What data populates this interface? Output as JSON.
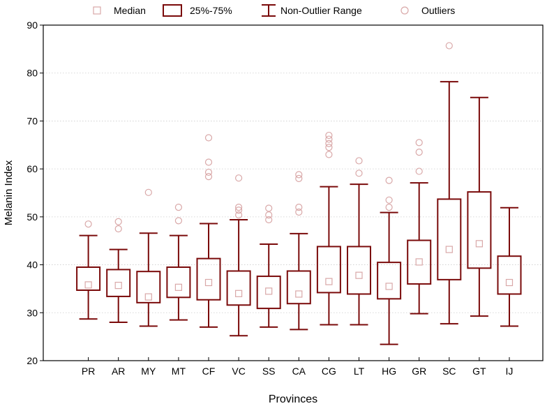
{
  "colors": {
    "box": "#7a0a0a",
    "outlier": "#d9a8a8",
    "grid": "#cccccc",
    "axis": "#000000"
  },
  "chart_data": {
    "type": "boxplot",
    "title": "",
    "xlabel": "Provinces",
    "ylabel": "Melanin Index",
    "ylim": [
      20,
      90
    ],
    "yticks": [
      20,
      30,
      40,
      50,
      60,
      70,
      80,
      90
    ],
    "grid": "horizontal-dotted",
    "legend_position": "top",
    "legend": [
      {
        "key": "median",
        "label": "Median"
      },
      {
        "key": "box",
        "label": "25%-75%"
      },
      {
        "key": "whisker",
        "label": "Non-Outlier Range"
      },
      {
        "key": "outlier",
        "label": "Outliers"
      }
    ],
    "categories": [
      "PR",
      "AR",
      "MY",
      "MT",
      "CF",
      "VC",
      "SS",
      "CA",
      "CG",
      "LT",
      "HG",
      "GR",
      "SC",
      "GT",
      "IJ"
    ],
    "series": [
      {
        "category": "PR",
        "min": 28.7,
        "q1": 34.7,
        "median": 35.8,
        "q3": 39.5,
        "max": 46.1,
        "outliers": [
          48.5
        ]
      },
      {
        "category": "AR",
        "min": 28.0,
        "q1": 33.4,
        "median": 35.7,
        "q3": 39.0,
        "max": 43.2,
        "outliers": [
          47.5,
          49.0
        ]
      },
      {
        "category": "MY",
        "min": 27.2,
        "q1": 32.1,
        "median": 33.3,
        "q3": 38.6,
        "max": 46.6,
        "outliers": [
          55.1
        ]
      },
      {
        "category": "MT",
        "min": 28.5,
        "q1": 33.2,
        "median": 35.3,
        "q3": 39.5,
        "max": 46.1,
        "outliers": [
          49.2,
          52.0
        ]
      },
      {
        "category": "CF",
        "min": 27.0,
        "q1": 32.7,
        "median": 36.3,
        "q3": 41.3,
        "max": 48.6,
        "outliers": [
          58.4,
          59.3,
          61.4,
          66.5
        ]
      },
      {
        "category": "VC",
        "min": 25.2,
        "q1": 31.6,
        "median": 34.0,
        "q3": 38.7,
        "max": 49.4,
        "outliers": [
          50.4,
          51.4,
          52.0,
          58.1
        ]
      },
      {
        "category": "SS",
        "min": 27.0,
        "q1": 30.9,
        "median": 34.5,
        "q3": 37.6,
        "max": 44.3,
        "outliers": [
          49.4,
          50.4,
          51.8
        ]
      },
      {
        "category": "CA",
        "min": 26.5,
        "q1": 31.9,
        "median": 33.9,
        "q3": 38.7,
        "max": 46.5,
        "outliers": [
          51.0,
          52.0,
          58.0,
          58.8
        ]
      },
      {
        "category": "CG",
        "min": 27.5,
        "q1": 34.2,
        "median": 36.5,
        "q3": 43.8,
        "max": 56.3,
        "outliers": [
          63.0,
          64.5,
          65.3,
          66.2,
          67.0
        ]
      },
      {
        "category": "LT",
        "min": 27.5,
        "q1": 33.9,
        "median": 37.8,
        "q3": 43.8,
        "max": 56.8,
        "outliers": [
          59.1,
          61.7
        ]
      },
      {
        "category": "HG",
        "min": 23.4,
        "q1": 32.9,
        "median": 35.5,
        "q3": 40.5,
        "max": 50.9,
        "outliers": [
          52.0,
          53.5,
          57.6
        ]
      },
      {
        "category": "GR",
        "min": 29.8,
        "q1": 36.0,
        "median": 40.6,
        "q3": 45.1,
        "max": 57.1,
        "outliers": [
          59.5,
          63.5,
          65.5
        ]
      },
      {
        "category": "SC",
        "min": 27.7,
        "q1": 36.9,
        "median": 43.2,
        "q3": 53.7,
        "max": 78.2,
        "outliers": [
          85.7
        ]
      },
      {
        "category": "GT",
        "min": 29.3,
        "q1": 39.3,
        "median": 44.4,
        "q3": 55.2,
        "max": 74.9,
        "outliers": []
      },
      {
        "category": "IJ",
        "min": 27.2,
        "q1": 33.9,
        "median": 36.3,
        "q3": 41.8,
        "max": 51.9,
        "outliers": []
      }
    ]
  }
}
